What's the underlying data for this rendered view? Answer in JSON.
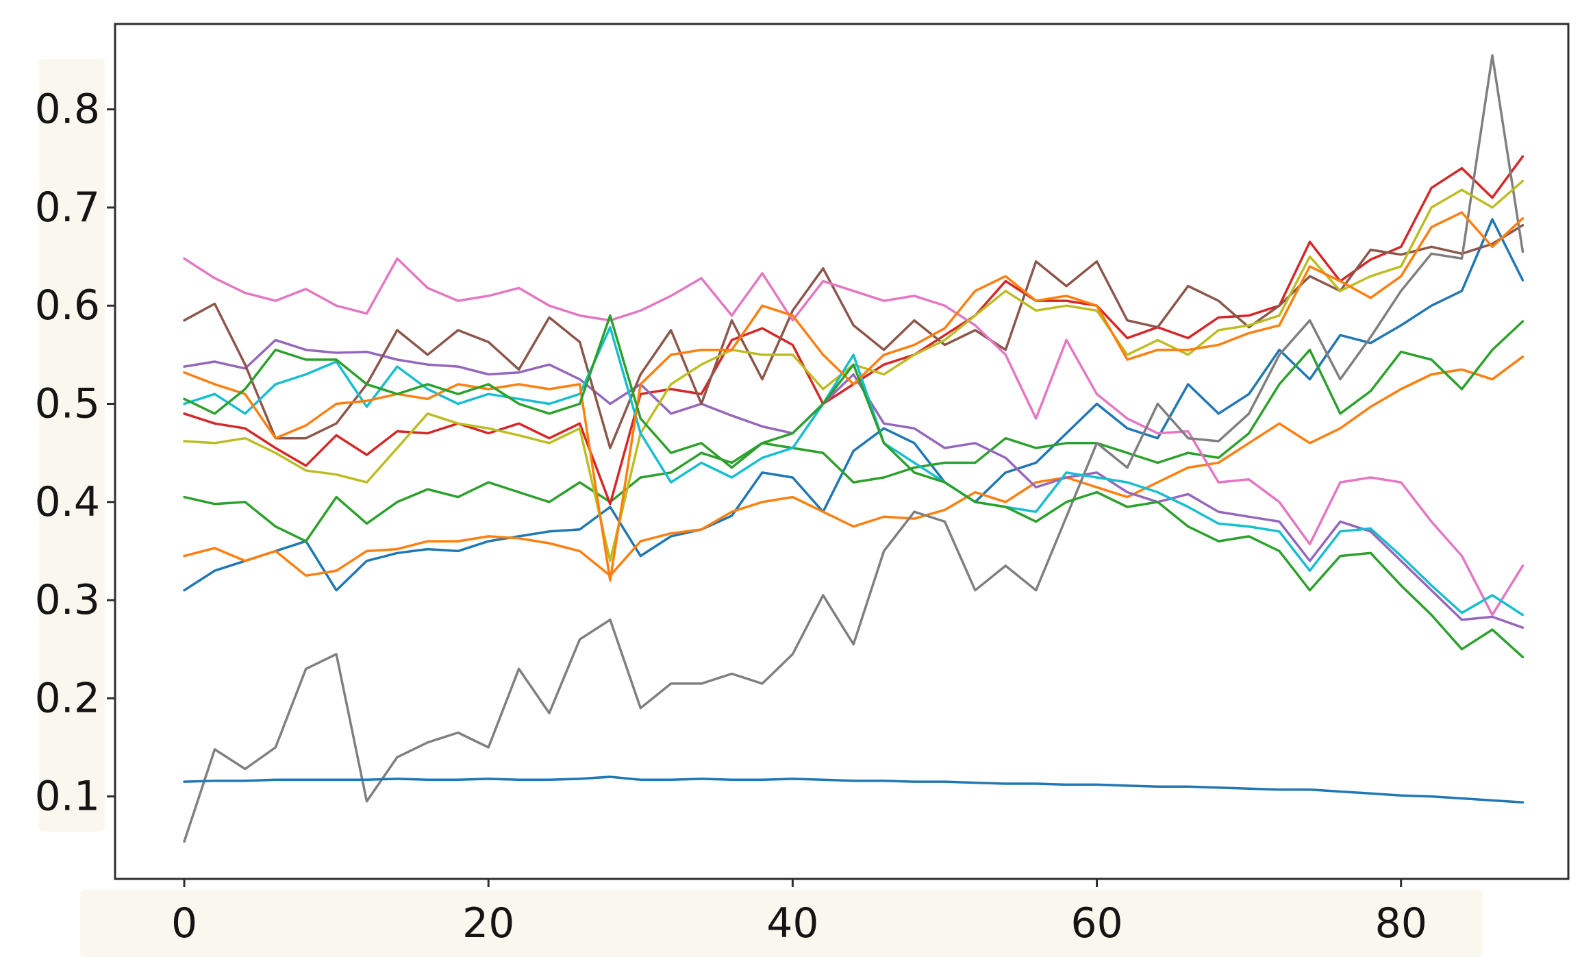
{
  "figure": {
    "background": "#ffffff",
    "plot_background": "#ffffff",
    "spine_color": "#2e2e2e",
    "tick_color": "#2e2e2e",
    "tick_label_color": "#141414",
    "label_strip_color": "#faf7ee"
  },
  "chart_data": {
    "type": "line",
    "title": "",
    "xlabel": "",
    "ylabel": "",
    "grid": false,
    "legend": "none",
    "xlim": [
      -4.55,
      91.0
    ],
    "ylim": [
      0.016,
      0.887
    ],
    "xticks": {
      "values": [
        0,
        20,
        40,
        60,
        80
      ],
      "labels": [
        "0",
        "20",
        "40",
        "60",
        "80"
      ]
    },
    "yticks": {
      "values": [
        0.1,
        0.2,
        0.3,
        0.4,
        0.5,
        0.6,
        0.7,
        0.8
      ],
      "labels": [
        "0.1",
        "0.2",
        "0.3",
        "0.4",
        "0.5",
        "0.6",
        "0.7",
        "0.8"
      ]
    },
    "x": [
      0,
      2,
      4,
      6,
      8,
      10,
      12,
      14,
      16,
      18,
      20,
      22,
      24,
      26,
      28,
      30,
      32,
      34,
      36,
      38,
      40,
      42,
      44,
      46,
      48,
      50,
      52,
      54,
      56,
      58,
      60,
      62,
      64,
      66,
      68,
      70,
      72,
      74,
      76,
      78,
      80,
      82,
      84,
      86,
      88
    ],
    "series": [
      {
        "name": "line-blue-rising",
        "color": "#1f77b4",
        "values": [
          0.31,
          0.33,
          0.34,
          0.35,
          0.36,
          0.31,
          0.34,
          0.348,
          0.352,
          0.35,
          0.36,
          0.365,
          0.37,
          0.372,
          0.395,
          0.345,
          0.365,
          0.372,
          0.386,
          0.43,
          0.425,
          0.39,
          0.452,
          0.475,
          0.46,
          0.42,
          0.4,
          0.43,
          0.44,
          0.47,
          0.5,
          0.475,
          0.465,
          0.52,
          0.49,
          0.51,
          0.555,
          0.525,
          0.57,
          0.562,
          0.58,
          0.6,
          0.615,
          0.688,
          0.626
        ]
      },
      {
        "name": "line-orange-low",
        "color": "#ff7f0e",
        "values": [
          0.345,
          0.353,
          0.34,
          0.35,
          0.325,
          0.33,
          0.35,
          0.352,
          0.36,
          0.36,
          0.365,
          0.363,
          0.358,
          0.35,
          0.325,
          0.36,
          0.368,
          0.372,
          0.39,
          0.4,
          0.405,
          0.39,
          0.375,
          0.385,
          0.383,
          0.392,
          0.41,
          0.4,
          0.42,
          0.425,
          0.415,
          0.405,
          0.42,
          0.435,
          0.44,
          0.46,
          0.48,
          0.46,
          0.475,
          0.497,
          0.515,
          0.53,
          0.535,
          0.525,
          0.548
        ]
      },
      {
        "name": "line-green-low",
        "color": "#2ca02c",
        "values": [
          0.405,
          0.398,
          0.4,
          0.375,
          0.36,
          0.405,
          0.378,
          0.4,
          0.413,
          0.405,
          0.42,
          0.41,
          0.4,
          0.42,
          0.4,
          0.425,
          0.43,
          0.45,
          0.44,
          0.46,
          0.455,
          0.45,
          0.42,
          0.425,
          0.435,
          0.44,
          0.44,
          0.465,
          0.455,
          0.46,
          0.46,
          0.45,
          0.44,
          0.45,
          0.445,
          0.47,
          0.52,
          0.555,
          0.49,
          0.513,
          0.553,
          0.545,
          0.515,
          0.555,
          0.584
        ]
      },
      {
        "name": "line-red",
        "color": "#d62728",
        "values": [
          0.49,
          0.48,
          0.475,
          0.455,
          0.437,
          0.468,
          0.448,
          0.472,
          0.47,
          0.48,
          0.47,
          0.48,
          0.465,
          0.48,
          0.398,
          0.51,
          0.515,
          0.51,
          0.565,
          0.577,
          0.56,
          0.5,
          0.52,
          0.54,
          0.55,
          0.57,
          0.59,
          0.625,
          0.605,
          0.605,
          0.6,
          0.567,
          0.578,
          0.567,
          0.588,
          0.59,
          0.6,
          0.665,
          0.625,
          0.647,
          0.66,
          0.72,
          0.74,
          0.71,
          0.752
        ]
      },
      {
        "name": "line-purple",
        "color": "#9467bd",
        "values": [
          0.538,
          0.543,
          0.536,
          0.565,
          0.555,
          0.552,
          0.553,
          0.545,
          0.54,
          0.538,
          0.53,
          0.532,
          0.54,
          0.525,
          0.5,
          0.52,
          0.49,
          0.5,
          0.488,
          0.477,
          0.47,
          0.5,
          0.53,
          0.48,
          0.475,
          0.455,
          0.46,
          0.445,
          0.415,
          0.425,
          0.43,
          0.41,
          0.4,
          0.408,
          0.39,
          0.385,
          0.38,
          0.34,
          0.38,
          0.37,
          0.34,
          0.31,
          0.28,
          0.283,
          0.272
        ]
      },
      {
        "name": "line-brown",
        "color": "#8c564b",
        "values": [
          0.585,
          0.602,
          0.54,
          0.465,
          0.465,
          0.48,
          0.52,
          0.575,
          0.55,
          0.575,
          0.563,
          0.535,
          0.588,
          0.563,
          0.455,
          0.53,
          0.575,
          0.5,
          0.585,
          0.525,
          0.595,
          0.638,
          0.58,
          0.555,
          0.585,
          0.56,
          0.575,
          0.555,
          0.645,
          0.62,
          0.645,
          0.585,
          0.578,
          0.62,
          0.605,
          0.578,
          0.6,
          0.63,
          0.615,
          0.657,
          0.652,
          0.66,
          0.653,
          0.663,
          0.682
        ]
      },
      {
        "name": "line-pink",
        "color": "#e377c2",
        "values": [
          0.648,
          0.628,
          0.613,
          0.605,
          0.617,
          0.6,
          0.592,
          0.648,
          0.618,
          0.605,
          0.61,
          0.618,
          0.6,
          0.59,
          0.585,
          0.595,
          0.61,
          0.628,
          0.59,
          0.633,
          0.585,
          0.625,
          0.615,
          0.605,
          0.61,
          0.6,
          0.58,
          0.55,
          0.485,
          0.565,
          0.51,
          0.485,
          0.47,
          0.472,
          0.42,
          0.423,
          0.4,
          0.357,
          0.42,
          0.425,
          0.42,
          0.38,
          0.345,
          0.285,
          0.335
        ]
      },
      {
        "name": "line-gray",
        "color": "#7f7f7f",
        "values": [
          0.054,
          0.148,
          0.128,
          0.15,
          0.23,
          0.245,
          0.095,
          0.14,
          0.155,
          0.165,
          0.15,
          0.23,
          0.185,
          0.26,
          0.28,
          0.19,
          0.215,
          0.215,
          0.225,
          0.215,
          0.245,
          0.305,
          0.255,
          0.35,
          0.39,
          0.38,
          0.31,
          0.335,
          0.31,
          0.385,
          0.46,
          0.435,
          0.5,
          0.465,
          0.462,
          0.49,
          0.55,
          0.585,
          0.525,
          0.568,
          0.615,
          0.653,
          0.648,
          0.855,
          0.655
        ]
      },
      {
        "name": "line-olive",
        "color": "#bcbd22",
        "values": [
          0.462,
          0.46,
          0.465,
          0.45,
          0.432,
          0.428,
          0.42,
          0.455,
          0.49,
          0.48,
          0.475,
          0.468,
          0.46,
          0.475,
          0.34,
          0.47,
          0.52,
          0.54,
          0.555,
          0.55,
          0.55,
          0.515,
          0.54,
          0.53,
          0.55,
          0.565,
          0.59,
          0.615,
          0.595,
          0.6,
          0.595,
          0.55,
          0.565,
          0.55,
          0.575,
          0.58,
          0.59,
          0.65,
          0.615,
          0.63,
          0.64,
          0.7,
          0.718,
          0.7,
          0.727
        ]
      },
      {
        "name": "line-cyan",
        "color": "#17becf",
        "values": [
          0.5,
          0.51,
          0.49,
          0.52,
          0.53,
          0.543,
          0.497,
          0.538,
          0.515,
          0.5,
          0.51,
          0.505,
          0.5,
          0.51,
          0.578,
          0.47,
          0.42,
          0.44,
          0.425,
          0.445,
          0.455,
          0.5,
          0.55,
          0.46,
          0.44,
          0.42,
          0.4,
          0.395,
          0.39,
          0.43,
          0.425,
          0.42,
          0.41,
          0.395,
          0.378,
          0.375,
          0.37,
          0.33,
          0.37,
          0.373,
          0.345,
          0.315,
          0.287,
          0.305,
          0.285
        ]
      },
      {
        "name": "line-blue-flat",
        "color": "#1f77b4",
        "values": [
          0.115,
          0.116,
          0.116,
          0.117,
          0.117,
          0.117,
          0.117,
          0.118,
          0.117,
          0.117,
          0.118,
          0.117,
          0.117,
          0.118,
          0.12,
          0.117,
          0.117,
          0.118,
          0.117,
          0.117,
          0.118,
          0.117,
          0.116,
          0.116,
          0.115,
          0.115,
          0.114,
          0.113,
          0.113,
          0.112,
          0.112,
          0.111,
          0.11,
          0.11,
          0.109,
          0.108,
          0.107,
          0.107,
          0.105,
          0.103,
          0.101,
          0.1,
          0.098,
          0.096,
          0.094
        ]
      },
      {
        "name": "line-orange-high",
        "color": "#ff7f0e",
        "values": [
          0.532,
          0.52,
          0.51,
          0.465,
          0.478,
          0.5,
          0.503,
          0.51,
          0.505,
          0.52,
          0.515,
          0.52,
          0.515,
          0.52,
          0.32,
          0.52,
          0.55,
          0.555,
          0.555,
          0.6,
          0.59,
          0.55,
          0.52,
          0.55,
          0.56,
          0.577,
          0.615,
          0.63,
          0.605,
          0.61,
          0.6,
          0.545,
          0.555,
          0.555,
          0.56,
          0.572,
          0.58,
          0.64,
          0.625,
          0.608,
          0.63,
          0.68,
          0.695,
          0.66,
          0.689
        ]
      },
      {
        "name": "line-green-high",
        "color": "#2ca02c",
        "values": [
          0.505,
          0.49,
          0.515,
          0.555,
          0.545,
          0.545,
          0.52,
          0.51,
          0.52,
          0.51,
          0.52,
          0.5,
          0.49,
          0.5,
          0.59,
          0.485,
          0.45,
          0.46,
          0.435,
          0.46,
          0.47,
          0.5,
          0.54,
          0.46,
          0.43,
          0.42,
          0.4,
          0.395,
          0.38,
          0.4,
          0.41,
          0.395,
          0.4,
          0.375,
          0.36,
          0.365,
          0.35,
          0.31,
          0.345,
          0.348,
          0.315,
          0.285,
          0.25,
          0.27,
          0.242
        ]
      }
    ]
  }
}
